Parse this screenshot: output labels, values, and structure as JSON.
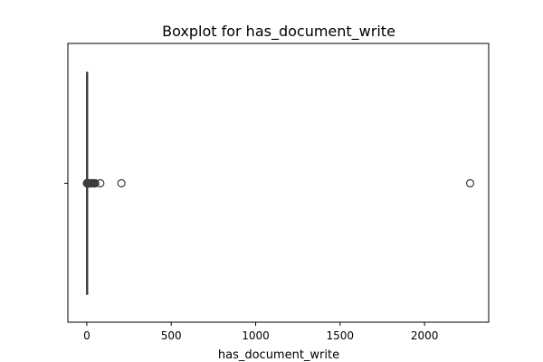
{
  "chart_data": {
    "type": "boxplot",
    "title": "Boxplot for has_document_write",
    "xlabel": "has_document_write",
    "ylabel": "",
    "xlim": [
      -112,
      2380
    ],
    "xticks": [
      0,
      500,
      1000,
      1500,
      2000
    ],
    "xtick_labels": [
      "0",
      "500",
      "1000",
      "1500",
      "2000"
    ],
    "box": {
      "whisker_low": 0,
      "q1": 0,
      "median": 0,
      "q3": 0,
      "whisker_high": 0
    },
    "outliers": [
      1,
      2,
      3,
      4,
      5,
      6,
      7,
      8,
      10,
      12,
      15,
      18,
      22,
      26,
      30,
      35,
      40,
      45,
      50,
      80,
      205,
      2270
    ],
    "grid": false,
    "colors": {
      "line": "#3d3d3d",
      "outlier_edge": "#3d3d3d",
      "axes": "#000000"
    }
  }
}
